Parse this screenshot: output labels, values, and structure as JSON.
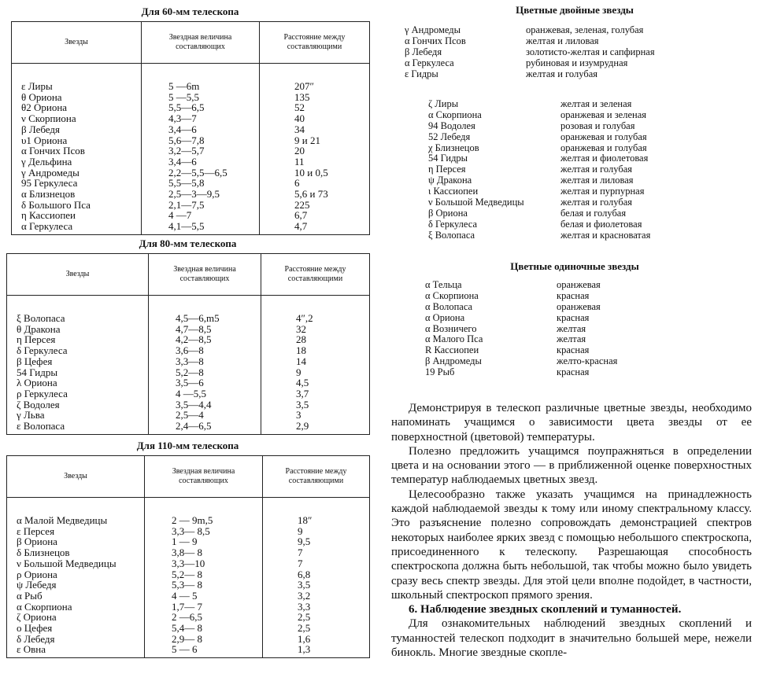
{
  "tables": [
    {
      "title": "Для 60-мм телескопа",
      "headers": [
        "Звезды",
        "Звездная величина составляющих",
        "Расстояние между составляющими"
      ],
      "rows": [
        [
          "ε Лиры",
          "5 —6m",
          "207″"
        ],
        [
          "θ Ориона",
          "5 —5,5",
          "135"
        ],
        [
          "θ2 Ориона",
          "5,5—6,5",
          "52"
        ],
        [
          "ν Скорпиона",
          "4,3—7",
          "40"
        ],
        [
          "β Лебедя",
          "3,4—6",
          "34"
        ],
        [
          "υ1 Ориона",
          "5,6—7,8",
          "9 и 21"
        ],
        [
          "α Гончих Псов",
          "3,2—5,7",
          "20"
        ],
        [
          "γ Дельфина",
          "3,4—6",
          "11"
        ],
        [
          "γ Андромеды",
          "2,2—5,5—6,5",
          "10 и 0,5"
        ],
        [
          "95 Геркулеса",
          "5,5—5,8",
          "6"
        ],
        [
          "α Близнецов",
          "2,5—3—9,5",
          "5,6 и 73"
        ],
        [
          "δ Большого Пса",
          "2,1—7,5",
          "225"
        ],
        [
          "η Кассиопеи",
          "4 —7",
          "6,7"
        ],
        [
          "α Геркулеса",
          "4,1—5,5",
          "4,7"
        ]
      ]
    },
    {
      "title": "Для 80-мм телескопа",
      "headers": [
        "Звезды",
        "Звездная величина составляющих",
        "Расстояние между составляющими"
      ],
      "rows": [
        [
          "ξ Волопаса",
          "4,5—6,m5",
          "4″,2"
        ],
        [
          "θ Дракона",
          "4,7—8,5",
          "32"
        ],
        [
          "η Персея",
          "4,2—8,5",
          "28"
        ],
        [
          "δ Геркулеса",
          "3,6—8",
          "18"
        ],
        [
          "β Цефея",
          "3,3—8",
          "14"
        ],
        [
          "54 Гидры",
          "5,2—8",
          "9"
        ],
        [
          "λ Ориона",
          "3,5—6",
          "4,5"
        ],
        [
          "ρ Геркулеса",
          "4 —5,5",
          "3,7"
        ],
        [
          "ζ Водолея",
          "3,5—4,4",
          "3,5"
        ],
        [
          "γ Льва",
          "2,5—4",
          "3"
        ],
        [
          "ε Волопаса",
          "2,4—6,5",
          "2,9"
        ]
      ]
    },
    {
      "title": "Для 110-мм телескопа",
      "headers": [
        "Звезды",
        "Звездная величина составляющих",
        "Расстояние между составляющими"
      ],
      "rows": [
        [
          "α Малой Медведицы",
          "2 — 9m,5",
          "18″"
        ],
        [
          "ε Персея",
          "3,3— 8,5",
          "9"
        ],
        [
          "β Ориона",
          "1 — 9",
          "9,5"
        ],
        [
          "δ Близнецов",
          "3,8— 8",
          "7"
        ],
        [
          "ν Большой Медведицы",
          "3,3—10",
          "7"
        ],
        [
          "ρ Ориона",
          "5,2— 8",
          "6,8"
        ],
        [
          "ψ Лебедя",
          "5,3— 8",
          "3,5"
        ],
        [
          "α Рыб",
          "4 — 5",
          "3,2"
        ],
        [
          "α Скорпиона",
          "1,7— 7",
          "3,3"
        ],
        [
          "ζ Ориона",
          "2 —6,5",
          "2,5"
        ],
        [
          "ο Цефея",
          "5,4— 8",
          "2,5"
        ],
        [
          "δ Лебедя",
          "2,9— 8",
          "1,6"
        ],
        [
          "ε Овна",
          "5 — 6",
          "1,3"
        ]
      ]
    }
  ],
  "double_stars": {
    "title": "Цветные двойные звезды",
    "group1": [
      [
        "γ Андромеды",
        "оранжевая, зеленая, голубая"
      ],
      [
        "α Гончих Псов",
        "желтая и лиловая"
      ],
      [
        "β Лебедя",
        "золотисто-желтая и сапфирная"
      ],
      [
        "α Геркулеса",
        "рубиновая и изумрудная"
      ],
      [
        "ε Гидры",
        "желтая и голубая"
      ]
    ],
    "group2": [
      [
        "ζ Лиры",
        "желтая и зеленая"
      ],
      [
        "α Скорпиона",
        "оранжевая и зеленая"
      ],
      [
        "94 Водолея",
        "розовая и голубая"
      ],
      [
        "52 Лебедя",
        "оранжевая и голубая"
      ],
      [
        "χ Близнецов",
        "оранжевая и голубая"
      ],
      [
        "54 Гидры",
        "желтая и фиолетовая"
      ],
      [
        "η Персея",
        "желтая и голубая"
      ],
      [
        "ψ Дракона",
        "желтая и лиловая"
      ],
      [
        "ι Кассиопеи",
        "желтая и пурпурная"
      ],
      [
        "ν Большой Медведицы",
        "желтая и голубая"
      ],
      [
        "β Ориона",
        "белая и голубая"
      ],
      [
        "δ Геркулеса",
        "белая и фиолетовая"
      ],
      [
        "ξ Волопаса",
        "желтая и красноватая"
      ]
    ]
  },
  "single_stars": {
    "title": "Цветные одиночные звезды",
    "items": [
      [
        "α Тельца",
        "оранжевая"
      ],
      [
        "α Скорпиона",
        "красная"
      ],
      [
        "α Волопаса",
        "оранжевая"
      ],
      [
        "α Ориона",
        "красная"
      ],
      [
        "α Возничего",
        "желтая"
      ],
      [
        "α Малого Пса",
        "желтая"
      ],
      [
        "R Кассиопеи",
        "красная"
      ],
      [
        "β Андромеды",
        "желто-красная"
      ],
      [
        "19 Рыб",
        "красная"
      ]
    ]
  },
  "text": {
    "p1": "Демонстрируя в телескоп различные цветные звезды, необходимо напоминать учащимся о зависимости цвета звезды от ее поверхностной (цветовой) температуры.",
    "p2": "Полезно предложить учащимся поупражняться в определении цвета и на основании этого — в приближенной оценке поверхностных температур наблюдаемых цветных звезд.",
    "p3": "Целесообразно также указать учащимся на принадлежность каждой наблюдаемой звезды к тому или иному спектральному классу. Это разъяснение полезно сопровождать демонстрацией спектров некоторых наиболее ярких звезд с помощью небольшого спектроскопа, присоединенного к телескопу. Разрешающая способность спектроскопа должна быть небольшой, так чтобы можно было увидеть сразу весь спектр звезды. Для этой цели вполне подойдет, в частности, школьный спектроскоп прямого зрения.",
    "heading": "6. Наблюдение звездных скоплений и туманностей.",
    "p4": "Для ознакомительных наблюдений звездных скоплений и туманностей телескоп подходит в значительно большей мере, нежели бинокль. Многие звездные скопле-"
  }
}
